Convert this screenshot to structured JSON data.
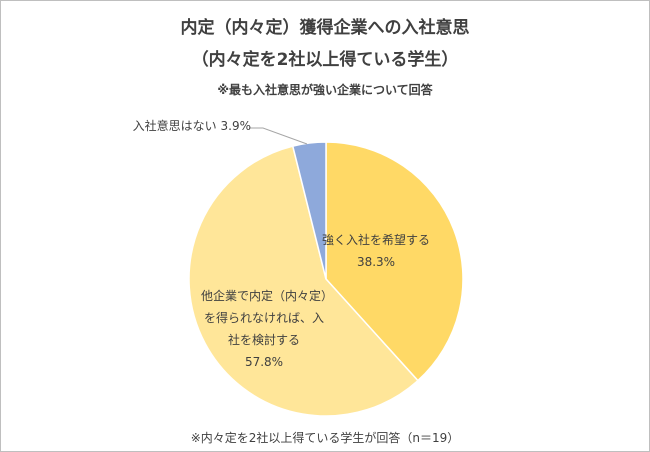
{
  "chart_data": {
    "type": "pie",
    "title": "内定（内々定）獲得企業への入社意思",
    "subtitle": "（内々定を2社以上得ている学生）",
    "note_top": "※最も入社意思が強い企業について回答",
    "note_bottom": "※内々定を2社以上得ている学生が回答（n＝19）",
    "categories": [
      "強く入社を希望する",
      "他企業で内定（内々定）を得られなければ、入社を検討する",
      "入社意思はない"
    ],
    "values": [
      38.3,
      57.8,
      3.9
    ],
    "value_labels": [
      "38.3%",
      "57.8%",
      "3.9%"
    ],
    "colors": [
      "#FFD966",
      "#FFE699",
      "#8EA9DB"
    ]
  }
}
